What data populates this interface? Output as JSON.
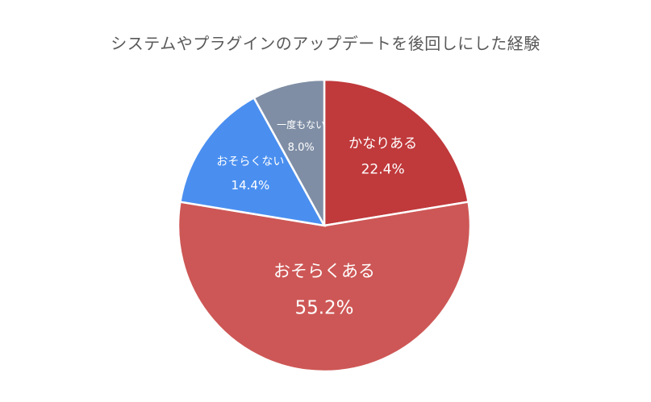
{
  "chart_data": {
    "type": "pie",
    "title": "システムやプラグインのアップデートを後回しにした経験",
    "slices": [
      {
        "label": "かなりある",
        "value": 22.4,
        "value_label": "22.4%",
        "color": "#c0393b"
      },
      {
        "label": "おそらくある",
        "value": 55.2,
        "value_label": "55.2%",
        "color": "#cd5756"
      },
      {
        "label": "おそらくない",
        "value": 14.4,
        "value_label": "14.4%",
        "color": "#4a8ff0"
      },
      {
        "label": "一度もない",
        "value": 8.0,
        "value_label": "8.0%",
        "color": "#7f8ea5"
      }
    ],
    "start_angle": "12 o'clock",
    "direction": "clockwise",
    "legend": "none"
  }
}
